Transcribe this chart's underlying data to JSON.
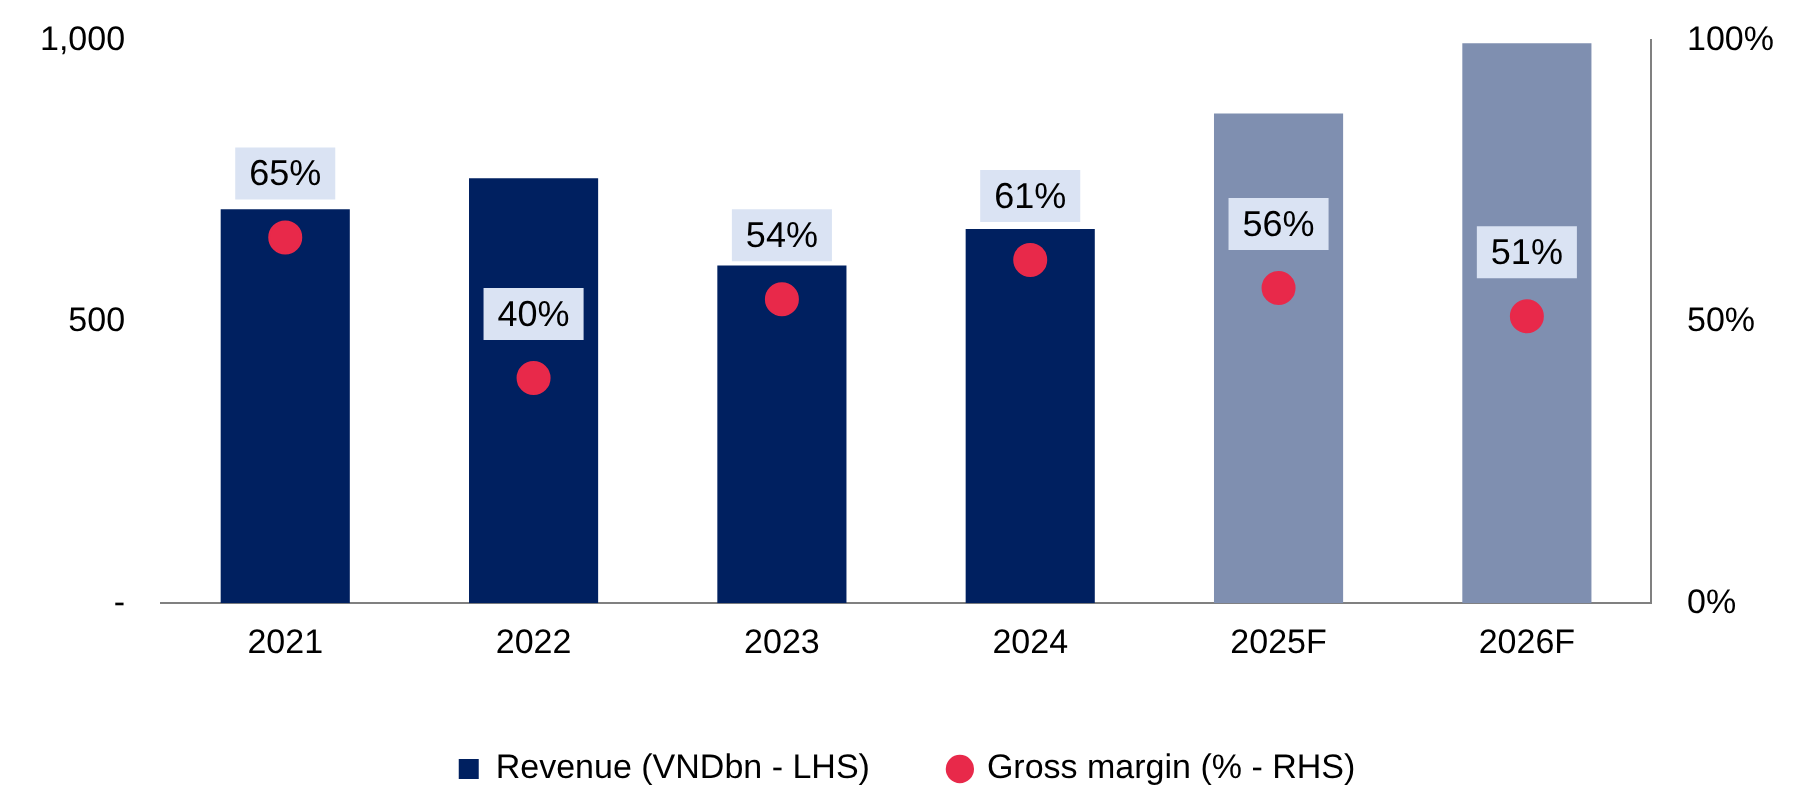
{
  "chart_data": {
    "type": "bar",
    "categories": [
      "2021",
      "2022",
      "2023",
      "2024",
      "2025F",
      "2026F"
    ],
    "series": [
      {
        "name": "Revenue (VNDbn - LHS)",
        "color": "#002060",
        "colors": [
          "#002060",
          "#002060",
          "#002060",
          "#002060",
          "#7f8fb0",
          "#7f8fb0"
        ],
        "values": [
          700,
          755,
          600,
          665,
          870,
          995
        ]
      },
      {
        "name": "Gross margin (% - RHS)",
        "type": "scatter",
        "axis": "y2",
        "color": "#e8294a",
        "values": [
          65,
          40,
          54,
          61,
          56,
          51
        ],
        "value_labels": [
          "65%",
          "40%",
          "54%",
          "61%",
          "56%",
          "51%"
        ]
      }
    ],
    "ylim": [
      0,
      1000
    ],
    "yticks": [
      {
        "value": 0,
        "label": "-"
      },
      {
        "value": 500,
        "label": "500"
      },
      {
        "value": 1000,
        "label": "1,000"
      }
    ],
    "y2lim": [
      0,
      100
    ],
    "y2ticks": [
      {
        "value": 0,
        "label": "0%"
      },
      {
        "value": 50,
        "label": "50%"
      },
      {
        "value": 100,
        "label": "100%"
      }
    ],
    "grid": false,
    "legend": "bottom",
    "marker": "circle"
  }
}
